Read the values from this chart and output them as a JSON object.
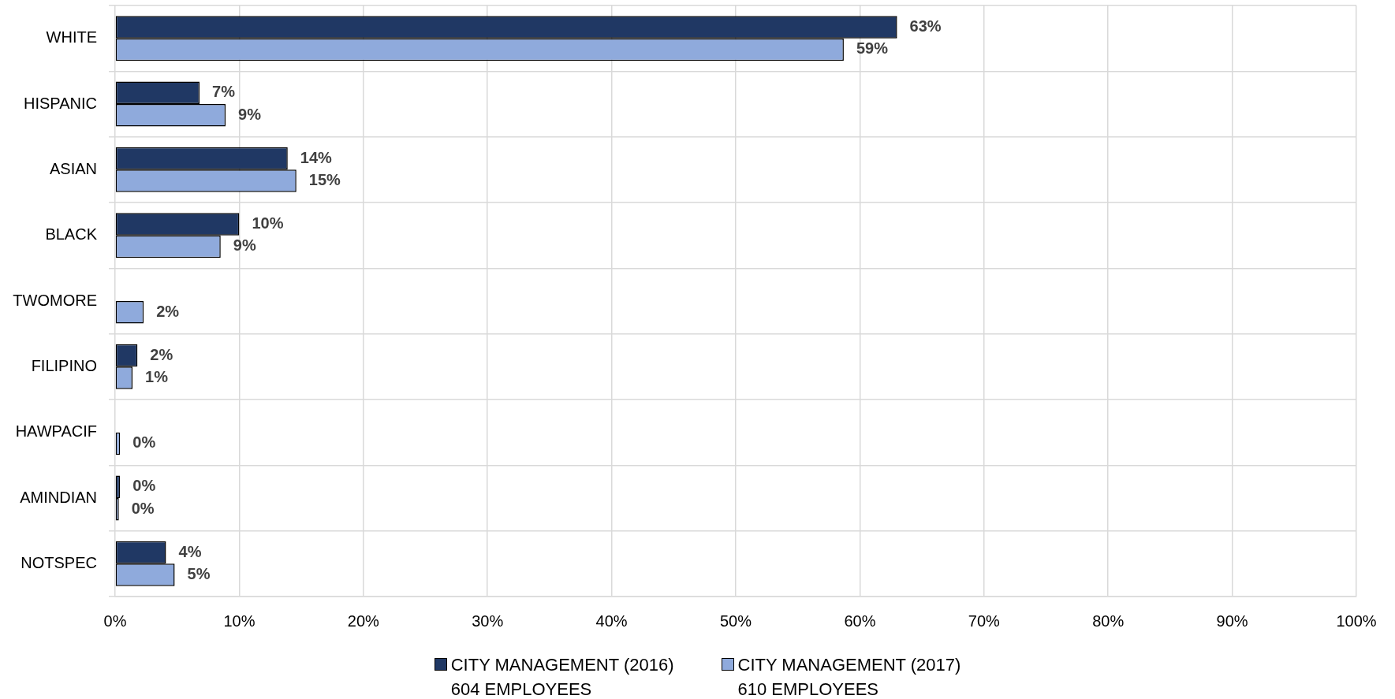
{
  "chart_data": {
    "type": "bar",
    "orientation": "horizontal",
    "categories": [
      "WHITE",
      "HISPANIC",
      "ASIAN",
      "BLACK",
      "TWOMORE",
      "FILIPINO",
      "HAWPACIF",
      "AMINDIAN",
      "NOTSPEC"
    ],
    "series": [
      {
        "name": "CITY MANAGEMENT (2016)\n604 EMPLOYEES",
        "color": "#203864",
        "values": [
          63.0,
          6.8,
          13.9,
          10.0,
          null,
          1.8,
          null,
          0.4,
          4.1
        ],
        "value_labels": [
          "63%",
          "7%",
          "14%",
          "10%",
          null,
          "2%",
          null,
          "0%",
          "4%"
        ]
      },
      {
        "name": "CITY MANAGEMENT (2017)\n610 EMPLOYEES",
        "color": "#8faadc",
        "values": [
          58.7,
          8.9,
          14.6,
          8.5,
          2.3,
          1.4,
          0.4,
          0.3,
          4.8
        ],
        "value_labels": [
          "59%",
          "9%",
          "15%",
          "9%",
          "2%",
          "1%",
          "0%",
          "0%",
          "5%"
        ]
      }
    ],
    "xlim": [
      0,
      100
    ],
    "xticks": [
      {
        "value": 0,
        "label": "0%"
      },
      {
        "value": 10,
        "label": "10%"
      },
      {
        "value": 20,
        "label": "20%"
      },
      {
        "value": 30,
        "label": "30%"
      },
      {
        "value": 40,
        "label": "40%"
      },
      {
        "value": 50,
        "label": "50%"
      },
      {
        "value": 60,
        "label": "60%"
      },
      {
        "value": 70,
        "label": "70%"
      },
      {
        "value": 80,
        "label": "80%"
      },
      {
        "value": 90,
        "label": "90%"
      },
      {
        "value": 100,
        "label": "100%"
      }
    ],
    "grid": true,
    "legend": "bottom"
  }
}
